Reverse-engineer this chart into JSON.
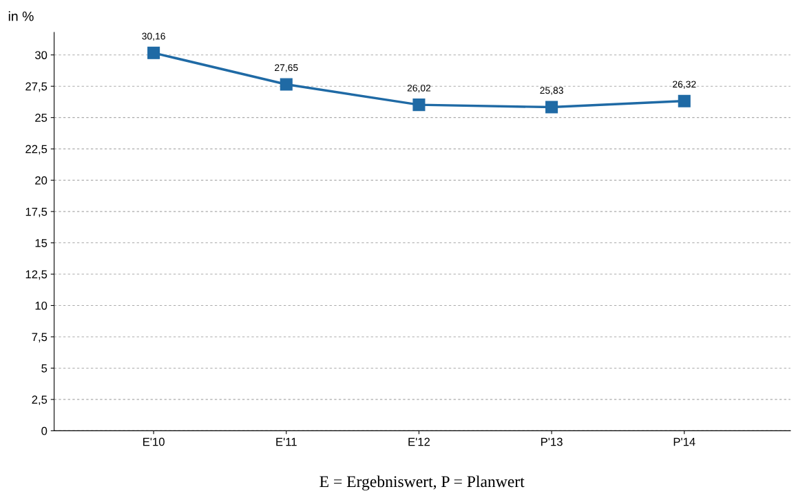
{
  "chart_data": {
    "type": "line",
    "ylabel": "in %",
    "categories": [
      "E'10",
      "E'11",
      "E'12",
      "P'13",
      "P'14"
    ],
    "series": [
      {
        "color": "#1f6aa5",
        "values": [
          30.16,
          27.65,
          26.02,
          25.83,
          26.32
        ],
        "value_labels": [
          "30,16",
          "27,65",
          "26,02",
          "25,83",
          "26,32"
        ]
      }
    ],
    "ylim": [
      0,
      31.8
    ],
    "yticks": [
      0,
      {
        "value": 2.5,
        "label": "2,5"
      },
      5,
      {
        "value": 7.5,
        "label": "7,5"
      },
      10,
      {
        "value": 12.5,
        "label": "12,5"
      },
      15,
      {
        "value": 17.5,
        "label": "17,5"
      },
      20,
      {
        "value": 22.5,
        "label": "22,5"
      },
      25,
      {
        "value": 27.5,
        "label": "27,5"
      },
      30
    ],
    "grid": "y",
    "marker": "square",
    "line_style": "solid",
    "annotations": [
      "E = Ergebniswert, P = Planwert"
    ]
  }
}
